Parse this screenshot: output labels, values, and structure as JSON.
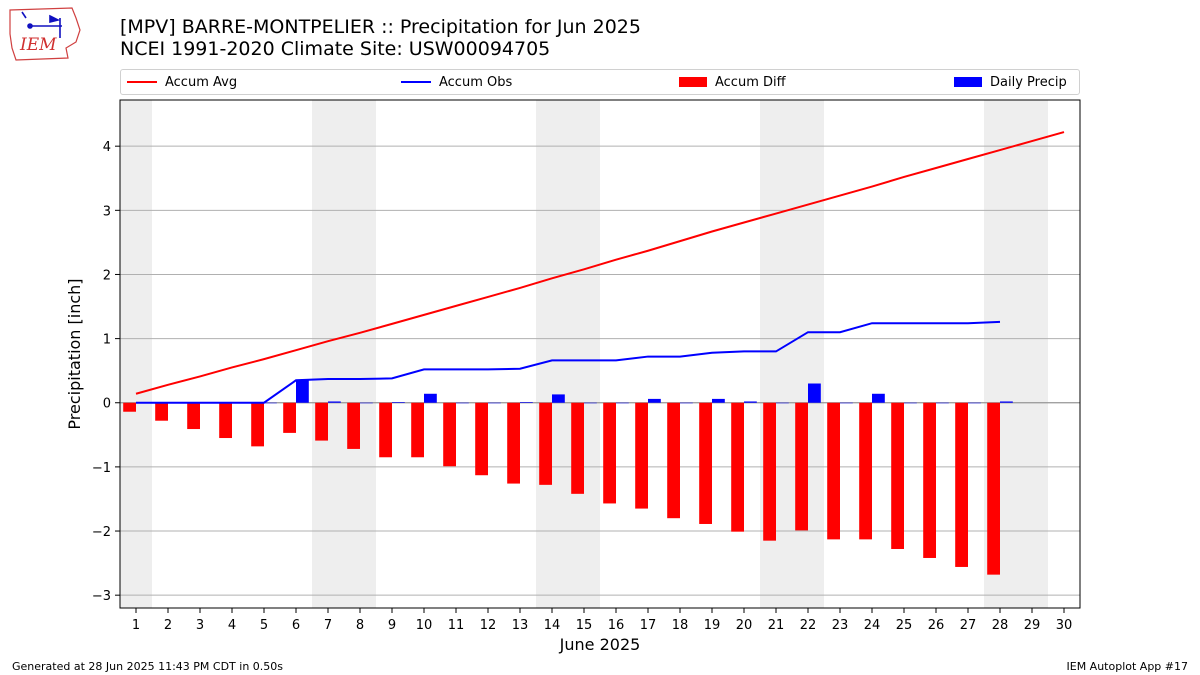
{
  "header": {
    "title_line1": "[MPV] BARRE-MONTPELIER :: Precipitation for Jun 2025",
    "title_line2": "NCEI 1991-2020 Climate Site: USW00094705"
  },
  "logo": {
    "text": "IEM",
    "icon": "iowa-map-logo-icon"
  },
  "legend": [
    {
      "label": "Accum Avg",
      "color": "#ff0000",
      "kind": "line"
    },
    {
      "label": "Accum Obs",
      "color": "#0000ff",
      "kind": "line"
    },
    {
      "label": "Accum Diff",
      "color": "#ff0000",
      "kind": "patch"
    },
    {
      "label": "Daily Precip",
      "color": "#0000ff",
      "kind": "patch"
    }
  ],
  "footer": {
    "left": "Generated at 28 Jun 2025 11:43 PM CDT in 0.50s",
    "right": "IEM Autoplot App #17"
  },
  "chart_data": {
    "type": "bar",
    "title": "[MPV] BARRE-MONTPELIER :: Precipitation for Jun 2025",
    "subtitle": "NCEI 1991-2020 Climate Site: USW00094705",
    "xlabel": "June 2025",
    "ylabel": "Precipitation [inch]",
    "xlim": [
      0.5,
      30.5
    ],
    "ylim": [
      -3.2,
      4.72
    ],
    "grid": "y",
    "legend_position": "top",
    "xticks": [
      1,
      2,
      3,
      4,
      5,
      6,
      7,
      8,
      9,
      10,
      11,
      12,
      13,
      14,
      15,
      16,
      17,
      18,
      19,
      20,
      21,
      22,
      23,
      24,
      25,
      26,
      27,
      28,
      29,
      30
    ],
    "yticks": [
      -3,
      -2,
      -1,
      0,
      1,
      2,
      3,
      4
    ],
    "ytick_labels": [
      "−3",
      "−2",
      "−1",
      "0",
      "1",
      "2",
      "3",
      "4"
    ],
    "weekend_bands": [
      [
        0.5,
        1.5
      ],
      [
        6.5,
        8.5
      ],
      [
        13.5,
        15.5
      ],
      [
        20.5,
        22.5
      ],
      [
        27.5,
        29.5
      ]
    ],
    "days": [
      1,
      2,
      3,
      4,
      5,
      6,
      7,
      8,
      9,
      10,
      11,
      12,
      13,
      14,
      15,
      16,
      17,
      18,
      19,
      20,
      21,
      22,
      23,
      24,
      25,
      26,
      27,
      28,
      29,
      30
    ],
    "series": [
      {
        "name": "Accum Avg",
        "kind": "line",
        "color": "#ff0000",
        "values": [
          0.14,
          0.28,
          0.41,
          0.55,
          0.68,
          0.82,
          0.96,
          1.09,
          1.23,
          1.37,
          1.51,
          1.65,
          1.79,
          1.94,
          2.08,
          2.23,
          2.37,
          2.52,
          2.67,
          2.81,
          2.95,
          3.09,
          3.23,
          3.37,
          3.52,
          3.66,
          3.8,
          3.94,
          4.08,
          4.22
        ]
      },
      {
        "name": "Accum Obs",
        "kind": "line",
        "color": "#0000ff",
        "values": [
          0,
          0,
          0,
          0,
          0,
          0.35,
          0.37,
          0.37,
          0.38,
          0.52,
          0.52,
          0.52,
          0.53,
          0.66,
          0.66,
          0.66,
          0.72,
          0.72,
          0.78,
          0.8,
          0.8,
          1.1,
          1.1,
          1.24,
          1.24,
          1.24,
          1.24,
          1.26
        ]
      },
      {
        "name": "Accum Diff",
        "kind": "bar",
        "color": "#ff0000",
        "values": [
          -0.14,
          -0.28,
          -0.41,
          -0.55,
          -0.68,
          -0.47,
          -0.59,
          -0.72,
          -0.85,
          -0.85,
          -0.99,
          -1.13,
          -1.26,
          -1.28,
          -1.42,
          -1.57,
          -1.65,
          -1.8,
          -1.89,
          -2.01,
          -2.15,
          -1.99,
          -2.13,
          -2.13,
          -2.28,
          -2.42,
          -2.56,
          -2.68
        ]
      },
      {
        "name": "Daily Precip",
        "kind": "bar",
        "color": "#0000ff",
        "values": [
          0,
          0,
          0,
          0,
          0,
          0.35,
          0.02,
          0,
          0.01,
          0.14,
          0,
          0,
          0.01,
          0.13,
          0,
          0,
          0.06,
          0,
          0.06,
          0.02,
          0,
          0.3,
          0,
          0.14,
          0,
          0,
          0,
          0.02
        ]
      }
    ]
  }
}
